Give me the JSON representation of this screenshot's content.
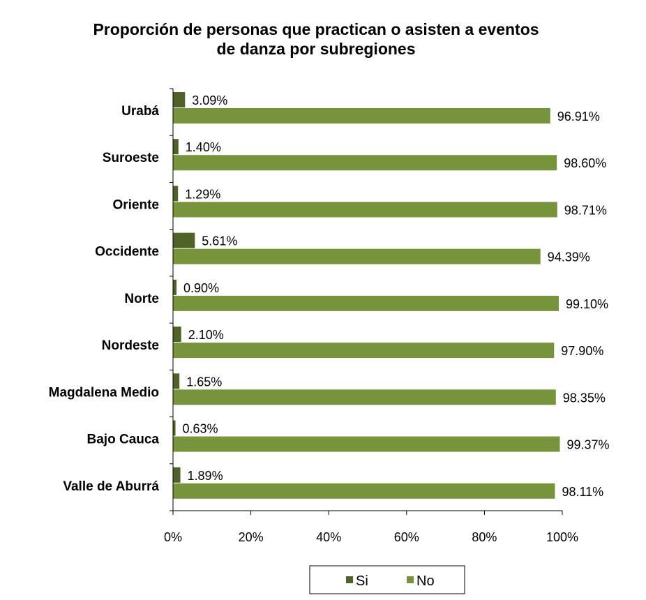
{
  "chart_data": {
    "type": "bar",
    "orientation": "horizontal",
    "title_lines": [
      "Proporción de personas que practican o asisten a eventos",
      "de danza por subregiones"
    ],
    "categories": [
      "Urabá",
      "Suroeste",
      "Oriente",
      "Occidente",
      "Norte",
      "Nordeste",
      "Magdalena Medio",
      "Bajo Cauca",
      "Valle de Aburrá"
    ],
    "series": [
      {
        "name": "Si",
        "color": "#4f6228",
        "values": [
          3.09,
          1.4,
          1.29,
          5.61,
          0.9,
          2.1,
          1.65,
          0.63,
          1.89
        ],
        "labels": [
          "3.09%",
          "1.40%",
          "1.29%",
          "5.61%",
          "0.90%",
          "2.10%",
          "1.65%",
          "0.63%",
          "1.89%"
        ]
      },
      {
        "name": "No",
        "color": "#77933c",
        "values": [
          96.91,
          98.6,
          98.71,
          94.39,
          99.1,
          97.9,
          98.35,
          99.37,
          98.11
        ],
        "labels": [
          "96.91%",
          "98.60%",
          "98.71%",
          "94.39%",
          "99.10%",
          "97.90%",
          "98.35%",
          "99.37%",
          "98.11%"
        ]
      }
    ],
    "xlim": [
      0,
      100
    ],
    "xticks": [
      0,
      20,
      40,
      60,
      80,
      100
    ],
    "xtick_labels": [
      "0%",
      "20%",
      "40%",
      "60%",
      "80%",
      "100%"
    ],
    "grid": false,
    "legend_position": "bottom"
  }
}
